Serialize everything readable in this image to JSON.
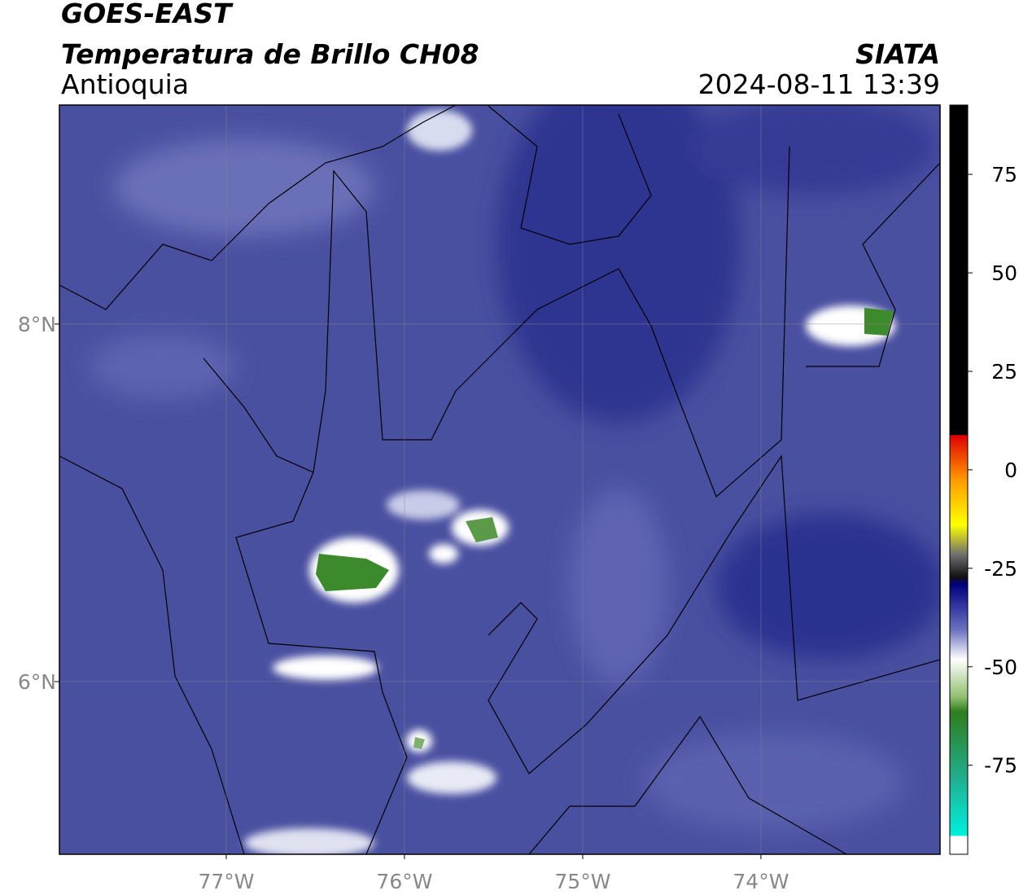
{
  "header": {
    "title": "GOES-EAST",
    "subtitle": "Temperatura de Brillo CH08",
    "region": "Antioquia",
    "source": "SIATA",
    "timestamp": "2024-08-11 13:39"
  },
  "map": {
    "xlim": [
      -77.936,
      -72.995
    ],
    "ylim": [
      5.034,
      9.225
    ],
    "xticks": [
      {
        "value": -77,
        "label": "77°W"
      },
      {
        "value": -76,
        "label": "76°W"
      },
      {
        "value": -75,
        "label": "75°W"
      },
      {
        "value": -74,
        "label": "74°W"
      }
    ],
    "yticks": [
      {
        "value": 8,
        "label": "8°N"
      },
      {
        "value": 6,
        "label": "6°N"
      }
    ],
    "grid": true
  },
  "colorbar": {
    "lim": [
      -97.6,
      92.6
    ],
    "ticks": [
      75,
      50,
      25,
      0,
      -25,
      -50,
      -75
    ]
  }
}
